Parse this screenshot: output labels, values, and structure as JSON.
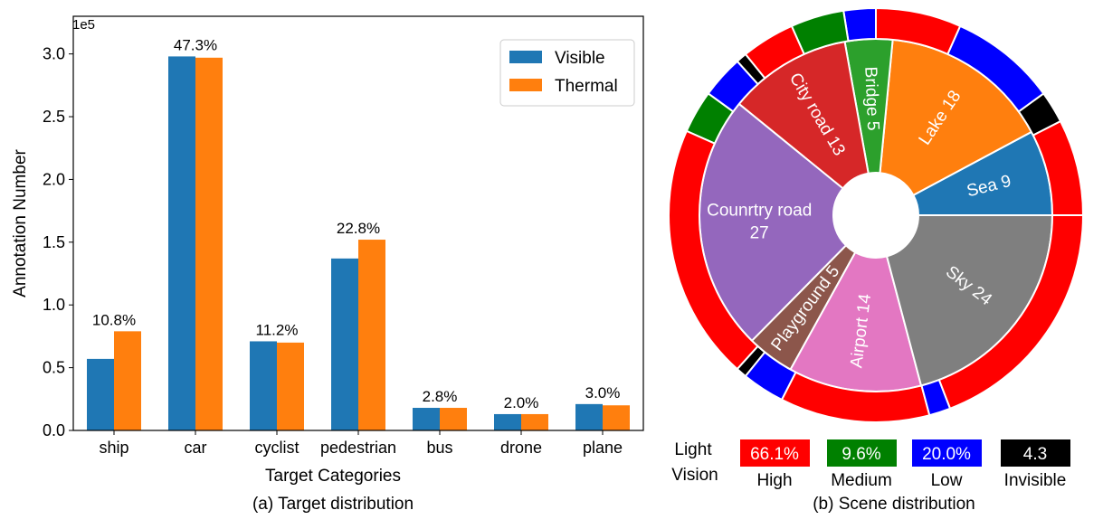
{
  "chart_data": [
    {
      "type": "bar",
      "title": "",
      "caption": "(a) Target distribution",
      "xlabel": "Target Categories",
      "ylabel": "Annotation Number",
      "y_multiplier": "1e5",
      "ylim": [
        0,
        3.3
      ],
      "yticks": [
        "0.0",
        "0.5",
        "1.0",
        "1.5",
        "2.0",
        "2.5",
        "3.0"
      ],
      "categories": [
        "ship",
        "car",
        "cyclist",
        "pedestrian",
        "bus",
        "drone",
        "plane"
      ],
      "series": [
        {
          "name": "Visible",
          "color": "#1f77b4",
          "values": [
            0.57,
            2.98,
            0.71,
            1.37,
            0.18,
            0.13,
            0.21
          ]
        },
        {
          "name": "Thermal",
          "color": "#ff7f0e",
          "values": [
            0.79,
            2.97,
            0.7,
            1.52,
            0.18,
            0.13,
            0.2
          ]
        }
      ],
      "data_labels": [
        "10.8%",
        "47.3%",
        "11.2%",
        "22.8%",
        "2.8%",
        "2.0%",
        "3.0%"
      ],
      "legend_position": "top-right"
    },
    {
      "type": "pie",
      "caption": "(b) Scene distribution",
      "inner_ring": [
        {
          "label": "Sea 9",
          "value": 9,
          "color": "#1f77b4"
        },
        {
          "label": "Lake 18",
          "value": 18,
          "color": "#ff7f0e"
        },
        {
          "label": "Bridge 5",
          "value": 5,
          "color": "#2ca02c"
        },
        {
          "label": "City road 13",
          "value": 13,
          "color": "#d62728"
        },
        {
          "label": "Counrtry road 27",
          "value": 27,
          "color": "#9467bd"
        },
        {
          "label": "Playground 5",
          "value": 5,
          "color": "#8c564b"
        },
        {
          "label": "Airport 14",
          "value": 14,
          "color": "#e377c2"
        },
        {
          "label": "Sky 24",
          "value": 24,
          "color": "#7f7f7f"
        }
      ],
      "outer_ring": [
        {
          "cat": "High",
          "value": 9
        },
        {
          "cat": "Invisible",
          "value": 3
        },
        {
          "cat": "Low",
          "value": 10
        },
        {
          "cat": "High",
          "value": 8
        },
        {
          "cat": "Low",
          "value": 3
        },
        {
          "cat": "Medium",
          "value": 5
        },
        {
          "cat": "High",
          "value": 5
        },
        {
          "cat": "Invisible",
          "value": 1
        },
        {
          "cat": "Low",
          "value": 4
        },
        {
          "cat": "Medium",
          "value": 4
        },
        {
          "cat": "High",
          "value": 24
        },
        {
          "cat": "Invisible",
          "value": 1
        },
        {
          "cat": "Low",
          "value": 4
        },
        {
          "cat": "High",
          "value": 14
        },
        {
          "cat": "Low",
          "value": 2
        },
        {
          "cat": "High",
          "value": 23
        }
      ],
      "light_vision_legend": {
        "title_line1": "Light",
        "title_line2": "Vision",
        "items": [
          {
            "value": "66.1%",
            "name": "High",
            "color": "#ff0000"
          },
          {
            "value": "9.6%",
            "name": "Medium",
            "color": "#008000"
          },
          {
            "value": "20.0%",
            "name": "Low",
            "color": "#0000ff"
          },
          {
            "value": "4.3",
            "name": "Invisible",
            "color": "#000000"
          }
        ]
      }
    }
  ]
}
